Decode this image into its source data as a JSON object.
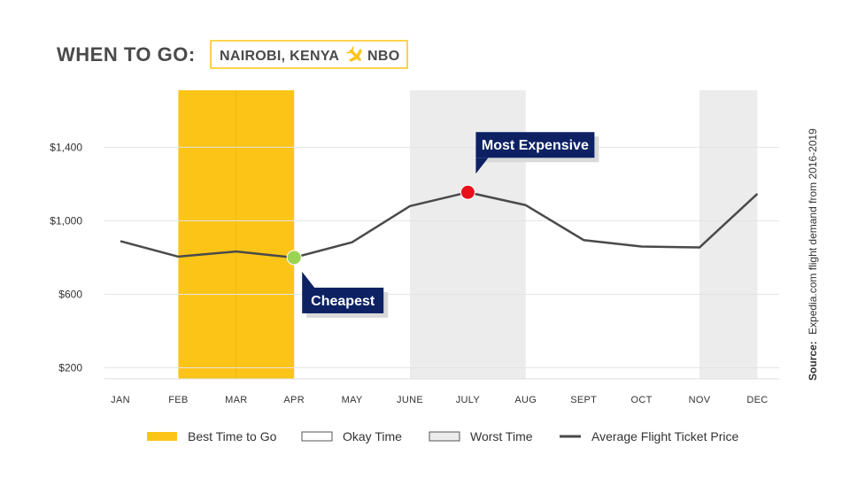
{
  "header": {
    "title": "WHEN TO GO:",
    "destination": "NAIROBI, KENYA",
    "airport_code": "NBO",
    "plane_icon": "airplane-icon"
  },
  "colors": {
    "best": "#fcc417",
    "worst": "#ececec",
    "okay": "#ffffff",
    "line": "#4a4a4a",
    "cheapest_dot": "#9bd454",
    "expensive_dot": "#e8101b",
    "callout": "#0d2163",
    "accent_box_border": "#fcc417"
  },
  "chart_data": {
    "type": "line",
    "categories": [
      "JAN",
      "FEB",
      "MAR",
      "APR",
      "MAY",
      "JUNE",
      "JULY",
      "AUG",
      "SEPT",
      "OCT",
      "NOV",
      "DEC"
    ],
    "series": [
      {
        "name": "Average Flight Ticket Price",
        "values": [
          889,
          805,
          833,
          800,
          883,
          1080,
          1155,
          1085,
          895,
          860,
          855,
          1147
        ]
      }
    ],
    "y_ticks": [
      "$200",
      "$600",
      "$1,000",
      "$1,400"
    ],
    "y_tick_values": [
      200,
      600,
      1000,
      1400
    ],
    "ylim": [
      140,
      1710
    ],
    "bands": [
      {
        "type": "best",
        "from": "FEB",
        "to": "APR"
      },
      {
        "type": "worst",
        "from": "JUNE",
        "to": "AUG"
      },
      {
        "type": "worst",
        "from": "NOV",
        "to": "DEC"
      }
    ],
    "annotations": [
      {
        "label": "Cheapest",
        "month": "APR",
        "value": 800,
        "marker": "cheapest_dot"
      },
      {
        "label": "Most Expensive",
        "month": "JULY",
        "value": 1155,
        "marker": "expensive_dot"
      }
    ],
    "grid": true,
    "legend": [
      {
        "label": "Best Time to Go",
        "swatch": "best"
      },
      {
        "label": "Okay Time",
        "swatch": "okay"
      },
      {
        "label": "Worst Time",
        "swatch": "worst"
      },
      {
        "label": "Average Flight Ticket Price",
        "swatch": "line"
      }
    ],
    "legend_position": "bottom",
    "source_prefix": "Source:",
    "source_text": "Expedia.com flight demand from 2016-2019"
  }
}
